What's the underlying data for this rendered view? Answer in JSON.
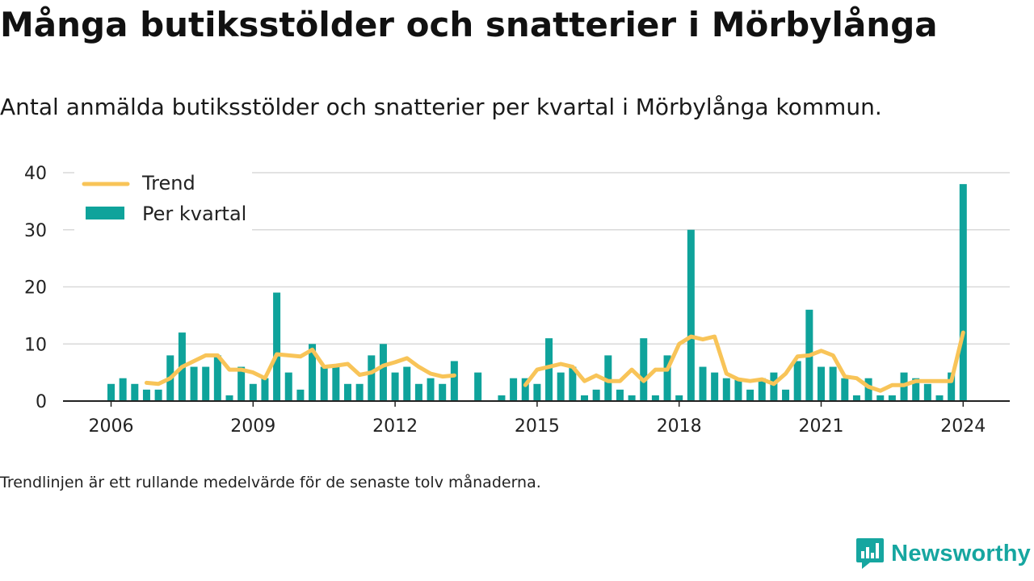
{
  "title": "Många butiksstölder och snatterier i Mörbylånga",
  "subtitle": "Antal anmälda butiksstölder och snatterier per kvartal i Mörbylånga kommun.",
  "footnote": "Trendlinjen är ett rullande medelvärde för de senaste tolv månaderna.",
  "logo": {
    "text": "Newsworthy",
    "icon": "newsworthy-chart-bubble-icon"
  },
  "colors": {
    "bar": "#0fa39b",
    "trend": "#f8c458",
    "grid": "#d9d9d9",
    "axis": "#222222",
    "logo": "#16a6a0"
  },
  "chart_data": {
    "type": "bar",
    "x_start": "2006 Q1",
    "x_ticks": [
      "2006",
      "2009",
      "2012",
      "2015",
      "2018",
      "2021",
      "2024"
    ],
    "y_ticks": [
      "0",
      "10",
      "20",
      "30",
      "40"
    ],
    "ylim": [
      0,
      40
    ],
    "grid": true,
    "legend_position": "top-left",
    "series": [
      {
        "name": "Per kvartal",
        "type": "bar",
        "values": [
          3,
          4,
          3,
          2,
          2,
          8,
          12,
          6,
          6,
          8,
          1,
          6,
          3,
          4,
          19,
          5,
          2,
          10,
          6,
          6,
          3,
          3,
          8,
          10,
          5,
          6,
          3,
          4,
          3,
          7,
          0,
          5,
          0,
          1,
          4,
          4,
          3,
          11,
          5,
          6,
          1,
          2,
          8,
          2,
          1,
          11,
          1,
          8,
          1,
          30,
          6,
          5,
          4,
          4,
          2,
          4,
          5,
          2,
          7,
          16,
          6,
          6,
          4,
          1,
          4,
          1,
          1,
          5,
          4,
          3,
          1,
          5,
          38
        ]
      },
      {
        "name": "Trend",
        "type": "line",
        "values": [
          null,
          null,
          null,
          3.2,
          3.0,
          4.0,
          6.0,
          7.0,
          8.0,
          8.0,
          5.5,
          5.5,
          5.0,
          4.0,
          8.2,
          8.0,
          7.8,
          9.0,
          6.0,
          6.2,
          6.5,
          4.6,
          5.0,
          6.2,
          6.8,
          7.5,
          6.0,
          4.8,
          4.3,
          4.5,
          null,
          null,
          null,
          null,
          null,
          2.8,
          5.5,
          6.0,
          6.5,
          6.0,
          3.5,
          4.5,
          3.5,
          3.5,
          5.5,
          3.5,
          5.5,
          5.5,
          10.0,
          11.3,
          10.8,
          11.3,
          4.8,
          3.8,
          3.5,
          3.8,
          3.0,
          4.8,
          7.8,
          8.0,
          8.8,
          8.0,
          4.3,
          4.0,
          2.5,
          1.8,
          2.8,
          2.8,
          3.5,
          3.5,
          3.5,
          3.5,
          12.0
        ]
      }
    ]
  }
}
